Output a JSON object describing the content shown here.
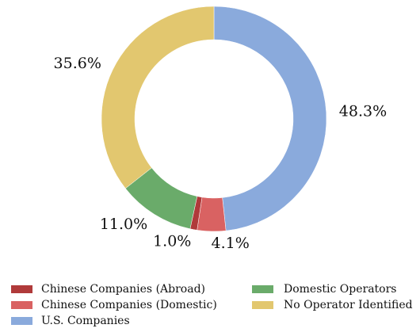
{
  "chart_data": {
    "type": "donut",
    "categories": [
      "U.S. Companies",
      "Chinese Companies (Domestic)",
      "Chinese Companies (Abroad)",
      "Domestic Operators",
      "No Operator Identified"
    ],
    "values": [
      48.3,
      4.1,
      1.0,
      11.0,
      35.6
    ],
    "value_labels": [
      "48.3%",
      "4.1%",
      "1.0%",
      "11.0%",
      "35.6%"
    ],
    "colors": [
      "#8aaadc",
      "#d96262",
      "#b03a3a",
      "#6aab6a",
      "#e2c76f"
    ],
    "legend": "bottom"
  }
}
